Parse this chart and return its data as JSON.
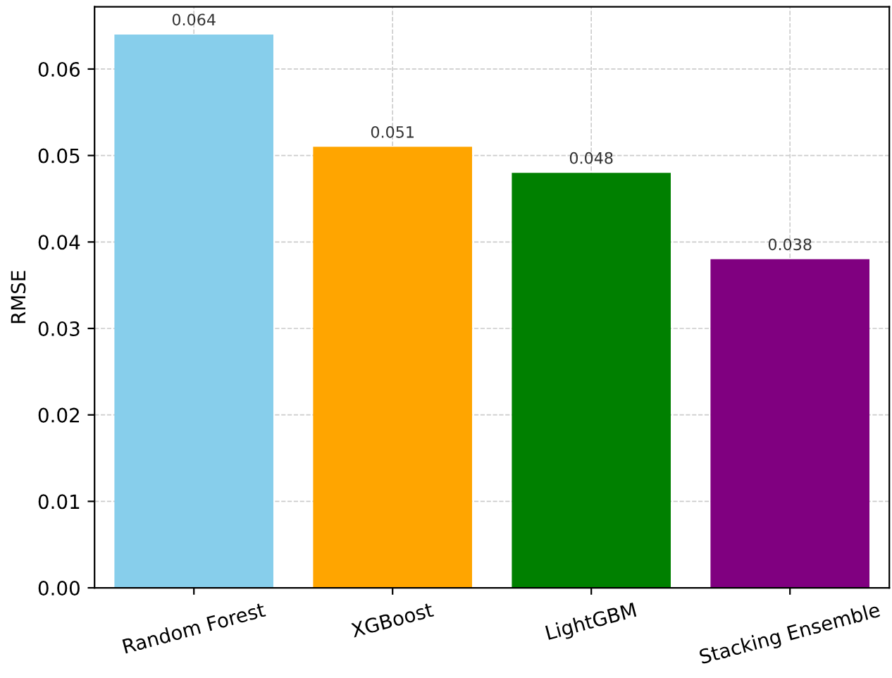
{
  "chart_data": {
    "type": "bar",
    "ylabel": "RMSE",
    "categories": [
      "Random Forest",
      "XGBoost",
      "LightGBM",
      "Stacking Ensemble"
    ],
    "values": [
      0.064,
      0.051,
      0.048,
      0.038
    ],
    "colors": [
      "#87ceeb",
      "#ffa500",
      "#008000",
      "#800080"
    ],
    "ylim": [
      0,
      0.0672
    ],
    "yticks": [
      {
        "value": 0,
        "label": "0.00"
      },
      {
        "value": 0.01,
        "label": "0.01"
      },
      {
        "value": 0.02,
        "label": "0.02"
      },
      {
        "value": 0.03,
        "label": "0.03"
      },
      {
        "value": 0.04,
        "label": "0.04"
      },
      {
        "value": 0.05,
        "label": "0.05"
      },
      {
        "value": 0.06,
        "label": "0.06"
      }
    ],
    "grid": true,
    "data_labels": true
  }
}
